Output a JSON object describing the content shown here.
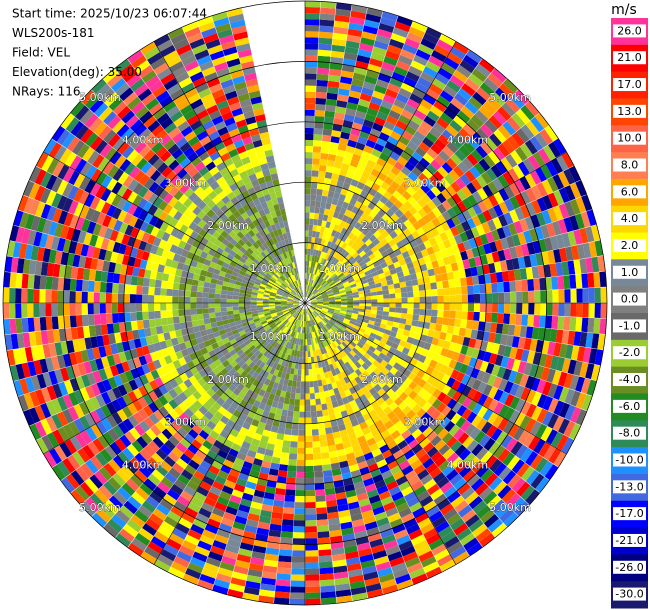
{
  "chart_data": {
    "type": "ppi",
    "header": [
      "Start time: 2025/10/23 06:07:44",
      "WLS200s-181",
      "Field: VEL",
      "Elevation(deg): 35.00",
      "NRays: 116"
    ],
    "range_rings": [
      {
        "value": 1,
        "label": "1.00km"
      },
      {
        "value": 2,
        "label": "2.00km"
      },
      {
        "value": 3,
        "label": "3.00km"
      },
      {
        "value": 4,
        "label": "4.00km"
      },
      {
        "value": 5,
        "label": "5.00km"
      }
    ],
    "colorbar": {
      "unit": "m/s",
      "ticks": [
        {
          "value": 26,
          "label": "26.0"
        },
        {
          "value": 21,
          "label": "21.0"
        },
        {
          "value": 17,
          "label": "17.0"
        },
        {
          "value": 13,
          "label": "13.0"
        },
        {
          "value": 10,
          "label": "10.0"
        },
        {
          "value": 8,
          "label": "8.0"
        },
        {
          "value": 6,
          "label": "6.0"
        },
        {
          "value": 4,
          "label": "4.0"
        },
        {
          "value": 2,
          "label": "2.0"
        },
        {
          "value": 1,
          "label": "1.0"
        },
        {
          "value": 0,
          "label": "0.0"
        },
        {
          "value": -1,
          "label": "-1.0"
        },
        {
          "value": -2,
          "label": "-2.0"
        },
        {
          "value": -4,
          "label": "-4.0"
        },
        {
          "value": -6,
          "label": "-6.0"
        },
        {
          "value": -8,
          "label": "-8.0"
        },
        {
          "value": -10,
          "label": "-10.0"
        },
        {
          "value": -13,
          "label": "-13.0"
        },
        {
          "value": -17,
          "label": "-17.0"
        },
        {
          "value": -21,
          "label": "-21.0"
        },
        {
          "value": -26,
          "label": "-26.0"
        },
        {
          "value": -30,
          "label": "-30.0"
        }
      ],
      "colors": [
        "#ff3399",
        "#ff0000",
        "#ff2200",
        "#ff4500",
        "#ff6347",
        "#ff7f50",
        "#ffa500",
        "#ffd700",
        "#ffff00",
        "#778899",
        "#808080",
        "#696969",
        "#9acd32",
        "#6b8e23",
        "#228b22",
        "#2e8b57",
        "#1e90ff",
        "#4169e1",
        "#0000ff",
        "#0000cd",
        "#000080",
        "#191970"
      ]
    }
  }
}
